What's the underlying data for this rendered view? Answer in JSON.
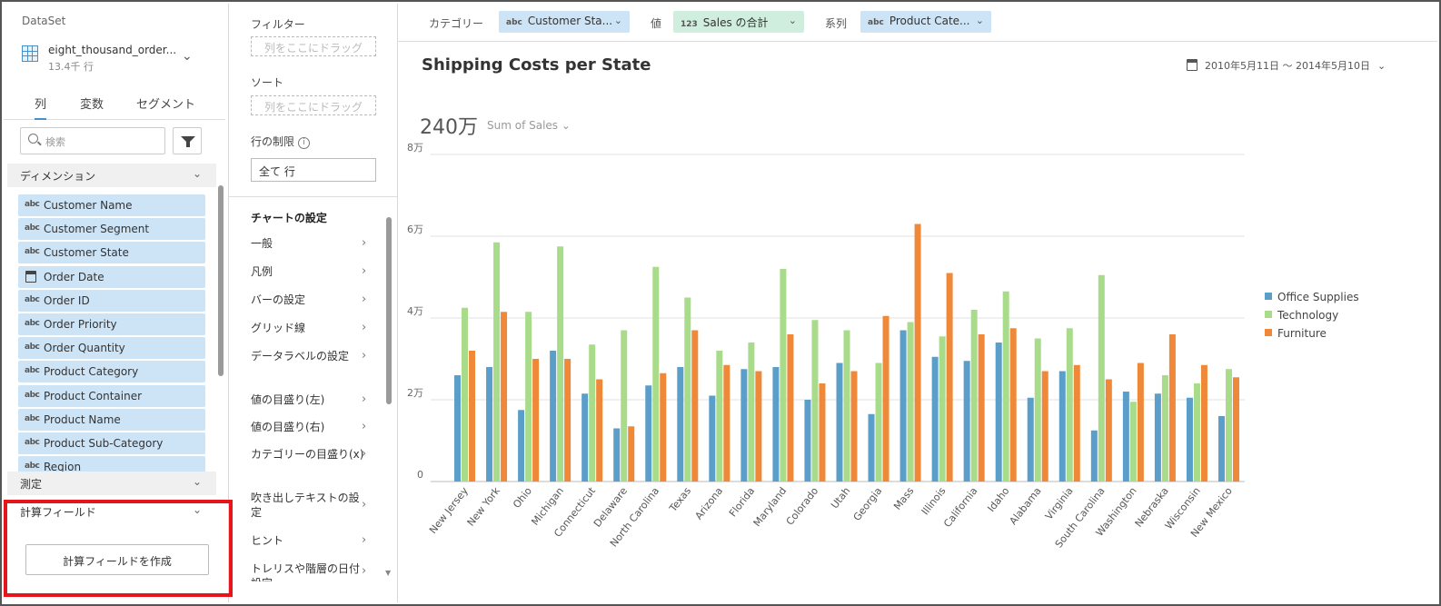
{
  "left": {
    "dataset_label": "DataSet",
    "dataset_name": "eight_thousand_order...",
    "dataset_rows": "13.4千 行",
    "tabs": [
      "列",
      "変数",
      "セグメント"
    ],
    "search_placeholder": "検索",
    "dimension_header": "ディメンション",
    "fields": [
      {
        "label": "Customer Name",
        "icon": "abc-type-icon"
      },
      {
        "label": "Customer Segment",
        "icon": "abc-type-icon"
      },
      {
        "label": "Customer State",
        "icon": "abc-type-icon"
      },
      {
        "label": "Order Date",
        "icon": "calendar-icon"
      },
      {
        "label": "Order ID",
        "icon": "abc-type-icon"
      },
      {
        "label": "Order Priority",
        "icon": "abc-type-icon"
      },
      {
        "label": "Order Quantity",
        "icon": "abc-type-icon"
      },
      {
        "label": "Product Category",
        "icon": "abc-type-icon"
      },
      {
        "label": "Product Container",
        "icon": "abc-type-icon"
      },
      {
        "label": "Product Name",
        "icon": "abc-type-icon"
      },
      {
        "label": "Product Sub-Category",
        "icon": "abc-type-icon"
      },
      {
        "label": "Region",
        "icon": "abc-type-icon"
      }
    ],
    "abc_glyph": "abc",
    "measure_header": "測定",
    "calc_header": "計算フィールド",
    "create_calc_button": "計算フィールドを作成",
    "highlight_color": "#e8141c"
  },
  "mid": {
    "filter_label": "フィルター",
    "filter_drop": "列をここにドラッグ",
    "sort_label": "ソート",
    "sort_drop": "列をここにドラッグ",
    "rowlimit_label": "行の制限",
    "rowlimit_value": "全て 行",
    "settings_title": "チャートの設定",
    "settings": [
      "一般",
      "凡例",
      "バーの設定",
      "グリッド線",
      "データラベルの設定",
      "値の目盛り(左)",
      "値の目盛り(右)",
      "カテゴリーの目盛り(x)",
      "吹き出しテキストの設定",
      "ヒント",
      "トレリスや階層の日付設定"
    ]
  },
  "toolbar": {
    "category_label": "カテゴリー",
    "category_value": "Customer Sta...",
    "value_label": "値",
    "value_type": "123",
    "value_value": "Sales の合計",
    "series_label": "系列",
    "series_value": "Product Cate...",
    "abc_glyph": "abc"
  },
  "chart_header": {
    "title": "Shipping Costs per State",
    "date_range": "2010年5月11日 ～ 2014年5月10日",
    "total": "240万",
    "measure": "Sum of Sales"
  },
  "chart_data": {
    "type": "bar",
    "title": "Shipping Costs per State",
    "ylim": [
      0,
      80000
    ],
    "yticks": [
      0,
      20000,
      40000,
      60000,
      80000
    ],
    "ytick_labels": [
      "0",
      "2万",
      "4万",
      "6万",
      "8万"
    ],
    "grid": true,
    "legend_position": "right",
    "categories": [
      "New Jersey",
      "New York",
      "Ohio",
      "Michigan",
      "Connecticut",
      "Delaware",
      "North Carolina",
      "Texas",
      "Arizona",
      "Florida",
      "Maryland",
      "Colorado",
      "Utah",
      "Georgia",
      "Mass",
      "Illinois",
      "California",
      "Idaho",
      "Alabama",
      "Virginia",
      "South Carolina",
      "Washington",
      "Nebraska",
      "Wisconsin",
      "New Mexico"
    ],
    "series": [
      {
        "name": "Office Supplies",
        "color": "#5b9ec9",
        "values": [
          26000,
          28000,
          17500,
          32000,
          21500,
          13000,
          23500,
          28000,
          21000,
          27500,
          28000,
          20000,
          29000,
          16500,
          37000,
          30500,
          29500,
          34000,
          20500,
          27000,
          12500,
          22000,
          21500,
          20500,
          16000
        ]
      },
      {
        "name": "Technology",
        "color": "#a9dc8a",
        "values": [
          42500,
          58500,
          41500,
          57500,
          33500,
          37000,
          52500,
          45000,
          32000,
          34000,
          52000,
          39500,
          37000,
          29000,
          39000,
          35500,
          42000,
          46500,
          35000,
          37500,
          50500,
          19500,
          26000,
          24000,
          27500
        ]
      },
      {
        "name": "Furniture",
        "color": "#f0883a",
        "values": [
          32000,
          41500,
          30000,
          30000,
          25000,
          13500,
          26500,
          37000,
          28500,
          27000,
          36000,
          24000,
          27000,
          40500,
          63000,
          51000,
          36000,
          37500,
          27000,
          28500,
          25000,
          29000,
          36000,
          28500,
          25500
        ]
      }
    ]
  }
}
